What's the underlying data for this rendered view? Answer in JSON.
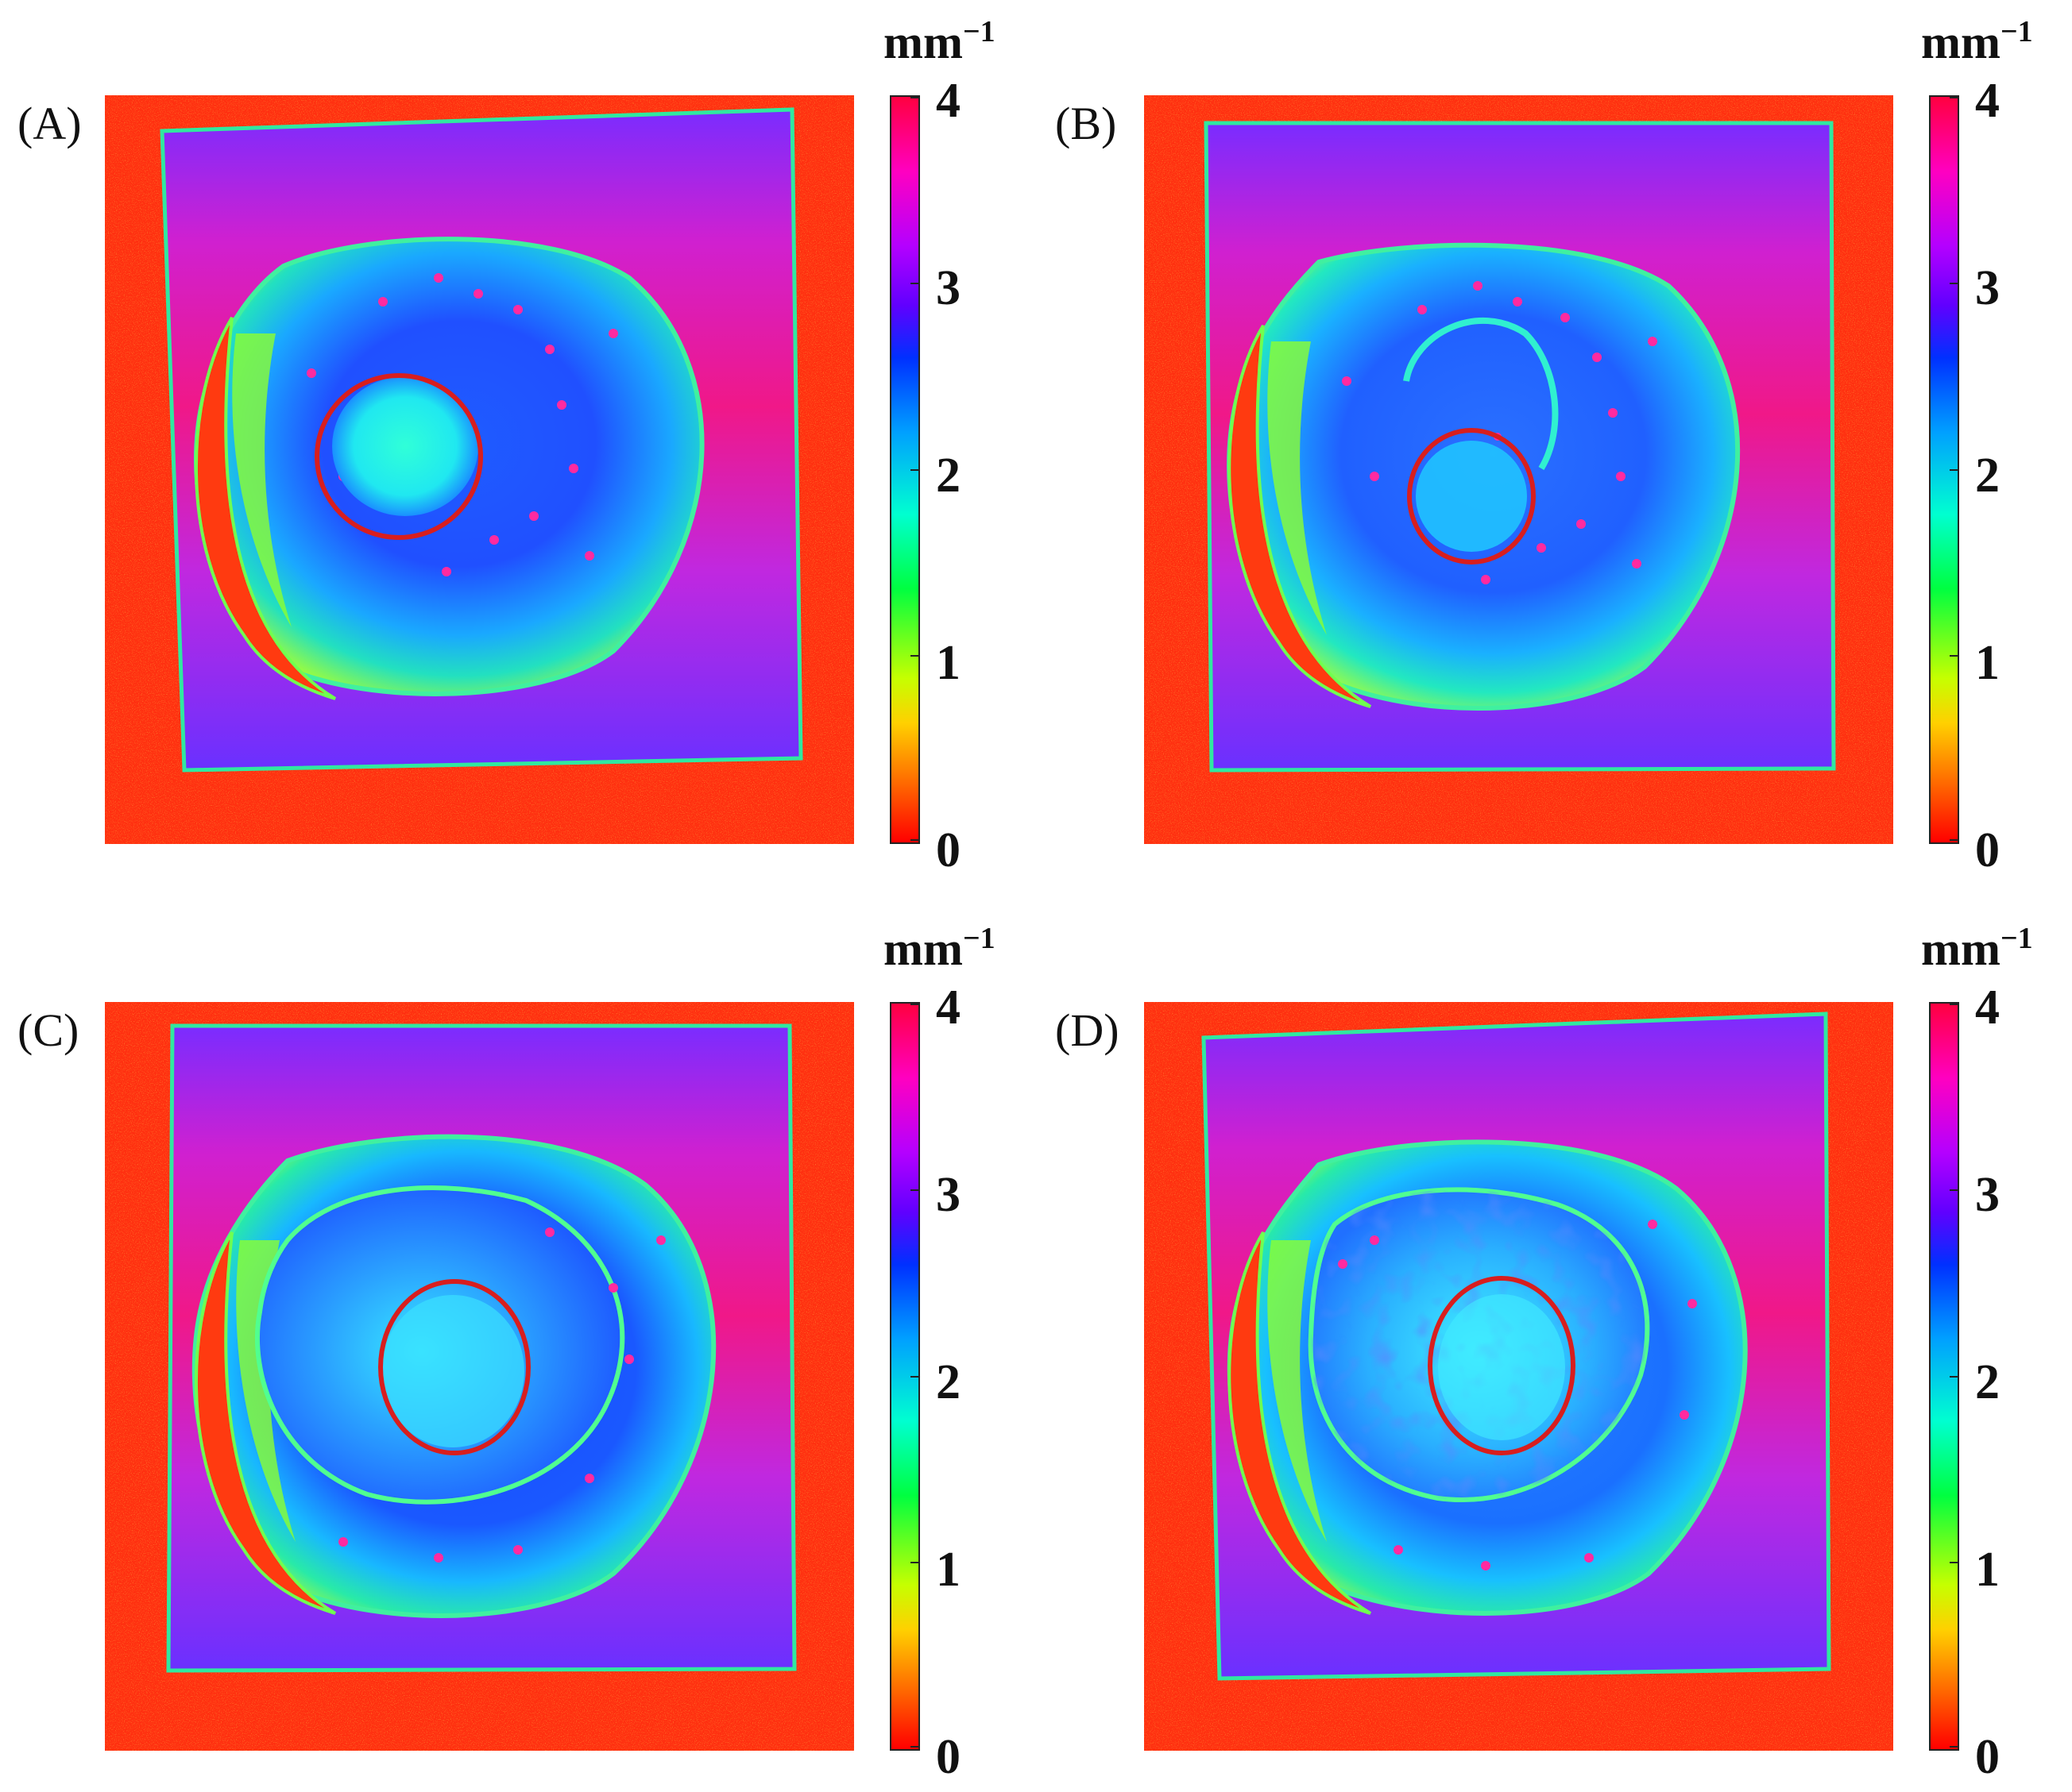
{
  "figure": {
    "unit_label": "mm",
    "unit_exponent": "−1",
    "colorbar_ticks": [
      "4",
      "3",
      "2",
      "1",
      "0"
    ],
    "colormap_range": [
      0,
      4
    ],
    "colorbar_colors": [
      "#ff0000",
      "#ffd000",
      "#00ff40",
      "#00ffd0",
      "#0030ff",
      "#b400ff",
      "#ff0040"
    ],
    "panels": [
      {
        "id": "A",
        "label": "(A)"
      },
      {
        "id": "B",
        "label": "(B)"
      },
      {
        "id": "C",
        "label": "(C)"
      },
      {
        "id": "D",
        "label": "(D)"
      }
    ],
    "marker_color": "#d81e1e"
  }
}
